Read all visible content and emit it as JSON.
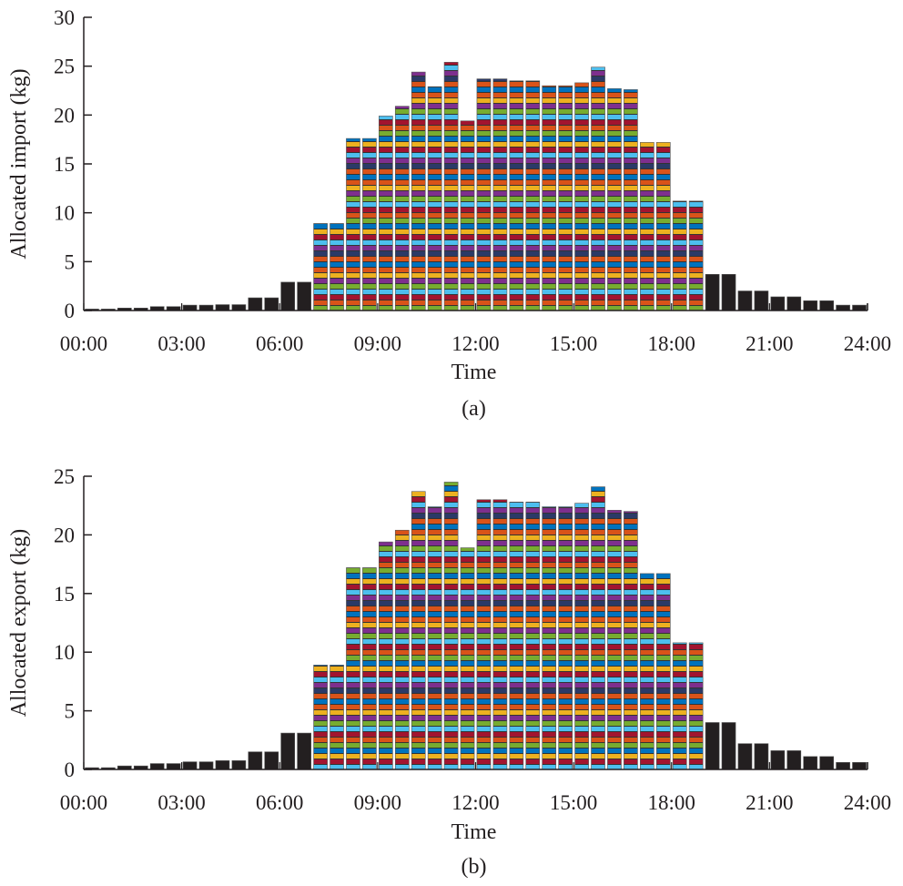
{
  "palette": [
    "#0072bd",
    "#d95319",
    "#edb120",
    "#7e2f8e",
    "#77ac30",
    "#4dbeee",
    "#a2142f",
    "#2b3a67"
  ],
  "solid_color": "#231f20",
  "chart_data": [
    {
      "type": "bar",
      "stacked": true,
      "caption": "(a)",
      "xlabel": "Time",
      "ylabel": "Allocated import (kg)",
      "xlim": [
        0,
        24
      ],
      "ylim": [
        0,
        30
      ],
      "yticks": [
        "0",
        "5",
        "10",
        "15",
        "20",
        "25",
        "30"
      ],
      "xticks": [
        "00:00",
        "03:00",
        "06:00",
        "09:00",
        "12:00",
        "15:00",
        "18:00",
        "21:00",
        "24:00"
      ],
      "interval_hours": 0.5,
      "values": [
        0.15,
        0.15,
        0.25,
        0.25,
        0.4,
        0.4,
        0.55,
        0.55,
        0.6,
        0.6,
        1.3,
        1.3,
        2.9,
        2.9,
        8.9,
        8.9,
        17.6,
        17.6,
        19.9,
        20.9,
        24.4,
        22.9,
        25.4,
        19.4,
        23.7,
        23.7,
        23.5,
        23.5,
        23.0,
        23.0,
        23.3,
        24.9,
        22.7,
        22.6,
        17.2,
        17.2,
        11.2,
        11.2,
        3.7,
        3.7,
        2.0,
        2.0,
        1.4,
        1.4,
        1.0,
        1.0,
        0.55,
        0.55
      ]
    },
    {
      "type": "bar",
      "stacked": true,
      "caption": "(b)",
      "xlabel": "Time",
      "ylabel": "Allocated export (kg)",
      "xlim": [
        0,
        24
      ],
      "ylim": [
        0,
        25
      ],
      "yticks": [
        "0",
        "5",
        "10",
        "15",
        "20",
        "25"
      ],
      "xticks": [
        "00:00",
        "03:00",
        "06:00",
        "09:00",
        "12:00",
        "15:00",
        "18:00",
        "21:00",
        "24:00"
      ],
      "interval_hours": 0.5,
      "values": [
        0.15,
        0.15,
        0.3,
        0.3,
        0.5,
        0.5,
        0.65,
        0.65,
        0.75,
        0.75,
        1.5,
        1.5,
        3.1,
        3.1,
        8.9,
        8.9,
        17.2,
        17.2,
        19.4,
        20.4,
        23.7,
        22.4,
        24.5,
        18.9,
        23.0,
        23.0,
        22.8,
        22.8,
        22.4,
        22.4,
        22.7,
        24.1,
        22.1,
        22.0,
        16.7,
        16.7,
        10.8,
        10.8,
        4.0,
        4.0,
        2.2,
        2.2,
        1.6,
        1.6,
        1.1,
        1.1,
        0.6,
        0.6
      ]
    }
  ]
}
